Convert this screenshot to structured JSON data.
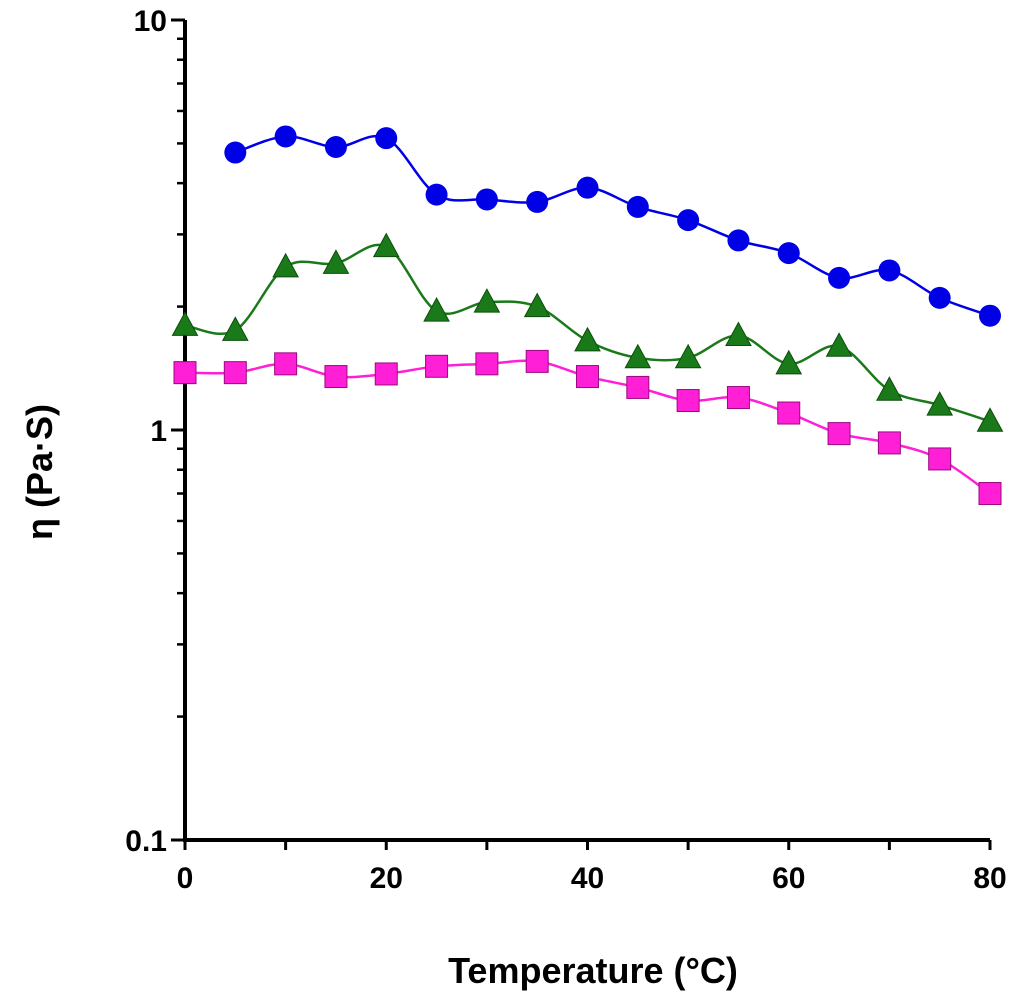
{
  "chart_data": {
    "type": "line",
    "title": "",
    "xlabel": "Temperature (°C)",
    "ylabel": "η (Pa·S)",
    "xlim": [
      0,
      80
    ],
    "ylim": [
      0.1,
      10
    ],
    "yscale": "log",
    "grid": false,
    "x_ticks": [
      0,
      20,
      40,
      60,
      80
    ],
    "x_tick_labels": [
      "0",
      "20",
      "40",
      "60",
      "80"
    ],
    "y_ticks": [
      0.1,
      1,
      10
    ],
    "y_tick_labels": [
      "0.1",
      "1",
      "10"
    ],
    "series": [
      {
        "name": "blue circles",
        "color": "#0000e6",
        "marker": "circle",
        "x": [
          5,
          10,
          15,
          20,
          25,
          30,
          35,
          40,
          45,
          50,
          55,
          60,
          65,
          70,
          75,
          80
        ],
        "y": [
          4.75,
          5.2,
          4.9,
          5.15,
          3.75,
          3.65,
          3.6,
          3.9,
          3.5,
          3.25,
          2.9,
          2.7,
          2.35,
          2.45,
          2.1,
          1.9
        ]
      },
      {
        "name": "green triangles",
        "color": "#1a7a1a",
        "marker": "triangle",
        "x": [
          0,
          5,
          10,
          15,
          20,
          25,
          30,
          35,
          40,
          45,
          50,
          55,
          60,
          65,
          70,
          75,
          80
        ],
        "y": [
          1.8,
          1.75,
          2.5,
          2.55,
          2.8,
          1.95,
          2.05,
          2.0,
          1.65,
          1.5,
          1.5,
          1.7,
          1.45,
          1.6,
          1.25,
          1.15,
          1.05
        ]
      },
      {
        "name": "magenta squares",
        "color": "#ff1fd6",
        "marker": "square",
        "x": [
          0,
          5,
          10,
          15,
          20,
          25,
          30,
          35,
          40,
          45,
          50,
          55,
          60,
          65,
          70,
          75,
          80
        ],
        "y": [
          1.38,
          1.38,
          1.45,
          1.35,
          1.37,
          1.43,
          1.45,
          1.47,
          1.35,
          1.27,
          1.18,
          1.2,
          1.1,
          0.98,
          0.93,
          0.85,
          0.7
        ]
      }
    ]
  }
}
